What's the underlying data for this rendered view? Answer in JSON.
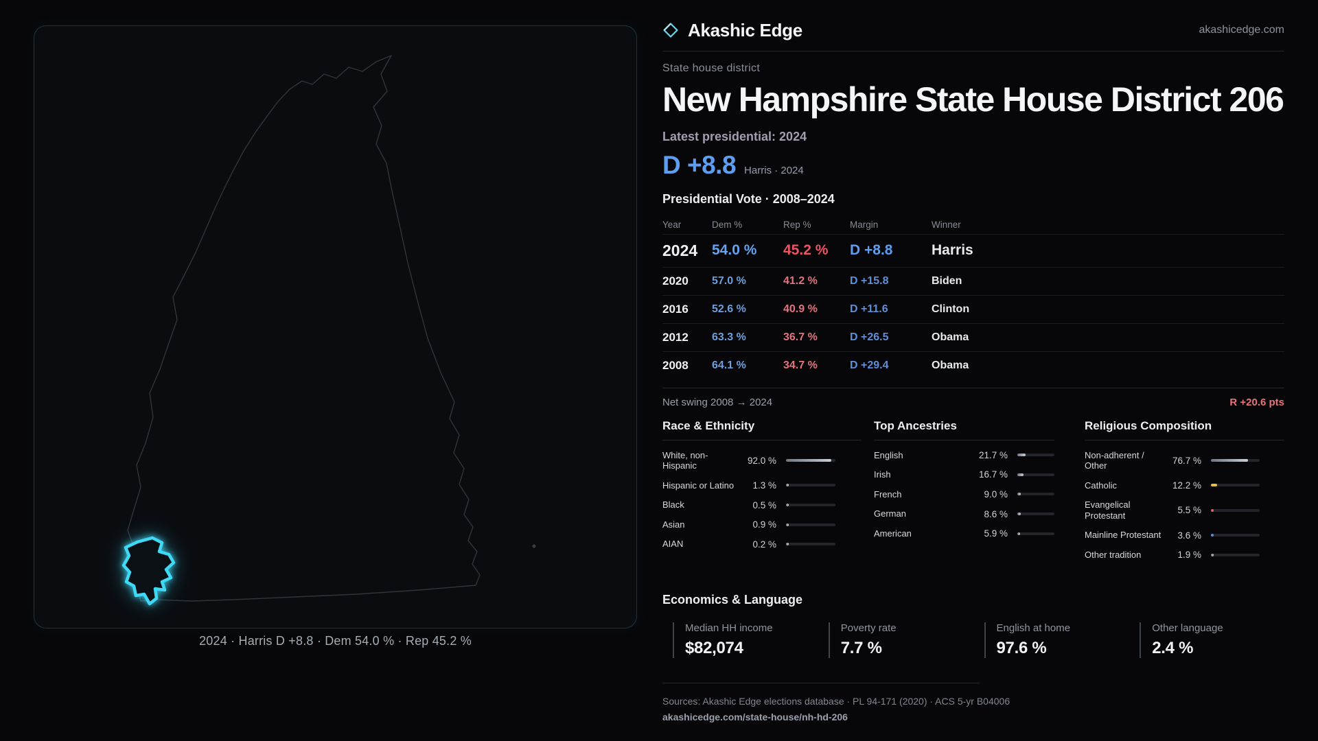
{
  "brand": {
    "name": "Akashic Edge",
    "domain": "akashicedge.com"
  },
  "header": {
    "kicker": "State house district",
    "title": "New Hampshire State House District 206",
    "latest_label": "Latest presidential: 2024",
    "headline_margin": "D +8.8",
    "headline_detail": "Harris · 2024"
  },
  "map": {
    "caption": "2024 · Harris D +8.8 · Dem 54.0 % · Rep 45.2 %"
  },
  "vote_table": {
    "title": "Presidential Vote · 2008–2024",
    "columns": [
      "Year",
      "Dem %",
      "Rep %",
      "Margin",
      "Winner"
    ],
    "rows": [
      {
        "year": "2024",
        "dem": "54.0 %",
        "rep": "45.2 %",
        "margin": "D +8.8",
        "winner": "Harris"
      },
      {
        "year": "2020",
        "dem": "57.0 %",
        "rep": "41.2 %",
        "margin": "D +15.8",
        "winner": "Biden"
      },
      {
        "year": "2016",
        "dem": "52.6 %",
        "rep": "40.9 %",
        "margin": "D +11.6",
        "winner": "Clinton"
      },
      {
        "year": "2012",
        "dem": "63.3 %",
        "rep": "36.7 %",
        "margin": "D +26.5",
        "winner": "Obama"
      },
      {
        "year": "2008",
        "dem": "64.1 %",
        "rep": "34.7 %",
        "margin": "D +29.4",
        "winner": "Obama"
      }
    ]
  },
  "swing": {
    "label": "Net swing 2008 → 2024",
    "value": "R +20.6 pts"
  },
  "demographics": {
    "race": {
      "title": "Race & Ethnicity",
      "items": [
        {
          "label": "White, non-Hispanic",
          "value": "92.0 %",
          "pct": 92.0
        },
        {
          "label": "Hispanic or Latino",
          "value": "1.3 %",
          "pct": 1.3
        },
        {
          "label": "Black",
          "value": "0.5 %",
          "pct": 0.5
        },
        {
          "label": "Asian",
          "value": "0.9 %",
          "pct": 0.9
        },
        {
          "label": "AIAN",
          "value": "0.2 %",
          "pct": 0.2
        }
      ]
    },
    "ancestries": {
      "title": "Top Ancestries",
      "items": [
        {
          "label": "English",
          "value": "21.7 %",
          "pct": 21.7
        },
        {
          "label": "Irish",
          "value": "16.7 %",
          "pct": 16.7
        },
        {
          "label": "French",
          "value": "9.0 %",
          "pct": 9.0
        },
        {
          "label": "German",
          "value": "8.6 %",
          "pct": 8.6
        },
        {
          "label": "American",
          "value": "5.9 %",
          "pct": 5.9
        }
      ]
    },
    "religion": {
      "title": "Religious Composition",
      "items": [
        {
          "label": "Non-adherent / Other",
          "value": "76.7 %",
          "pct": 76.7
        },
        {
          "label": "Catholic",
          "value": "12.2 %",
          "pct": 12.2,
          "color": "#e6c04a"
        },
        {
          "label": "Evangelical Protestant",
          "value": "5.5 %",
          "pct": 5.5,
          "color": "#e0636e"
        },
        {
          "label": "Mainline Protestant",
          "value": "3.6 %",
          "pct": 3.6,
          "color": "#5b8fd9"
        },
        {
          "label": "Other tradition",
          "value": "1.9 %",
          "pct": 1.9
        }
      ]
    }
  },
  "economics": {
    "title": "Economics & Language",
    "stats": [
      {
        "label": "Median HH income",
        "value": "$82,074"
      },
      {
        "label": "Poverty rate",
        "value": "7.7 %"
      },
      {
        "label": "English at home",
        "value": "97.6 %"
      },
      {
        "label": "Other language",
        "value": "2.4 %"
      }
    ]
  },
  "footer": {
    "sources": "Sources: Akashic Edge elections database · PL 94-171 (2020) · ACS 5-yr B04006",
    "permalink": "akashicedge.com/state-house/nh-hd-206"
  },
  "colors": {
    "dem_blue": "#5e9ef0",
    "rep_red": "#ea5560",
    "accent_cyan": "#3fd9f6",
    "swing_red": "#e8737b",
    "background": "#070709"
  }
}
